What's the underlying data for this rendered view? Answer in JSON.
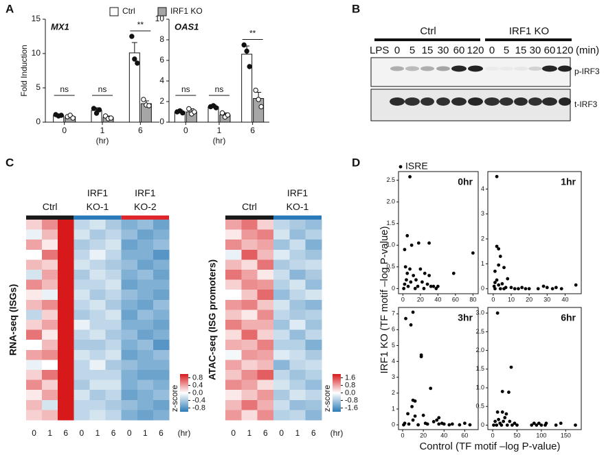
{
  "panel_labels": [
    "A",
    "B",
    "C",
    "D"
  ],
  "blot": {
    "groups": [
      "Ctrl",
      "IRF1 KO"
    ],
    "treatment": "LPS",
    "times": [
      0,
      5,
      15,
      30,
      60,
      120,
      0,
      5,
      15,
      30,
      60,
      120
    ],
    "unit": "(min)",
    "rows": [
      "p-IRF3",
      "t-IRF3"
    ]
  },
  "chart_data": [
    {
      "type": "bar",
      "title": "MX1",
      "ylabel": "Fold Induction",
      "xlabel": "(hr)",
      "categories": [
        "0",
        "1",
        "6"
      ],
      "series": [
        {
          "name": "Ctrl",
          "color": "#ffffff",
          "markers": "filled",
          "values": [
            1.0,
            1.7,
            10.1
          ],
          "errors": [
            0.2,
            0.4,
            1.5
          ],
          "points": [
            [
              1.1,
              0.9,
              1.0
            ],
            [
              2.0,
              1.3,
              1.8
            ],
            [
              12.5,
              9.2,
              8.6
            ]
          ]
        },
        {
          "name": "IRF1 KO",
          "color": "#a6a6a6",
          "markers": "open",
          "values": [
            0.8,
            0.7,
            2.7
          ],
          "errors": [
            0.2,
            0.2,
            0.4
          ],
          "points": [
            [
              0.8,
              1.0,
              0.6
            ],
            [
              0.9,
              0.5,
              0.6
            ],
            [
              3.3,
              2.5,
              2.4
            ]
          ]
        }
      ],
      "annotations": [
        "ns",
        "ns",
        "**"
      ],
      "ylim": [
        0,
        15
      ],
      "yticks": [
        0,
        5,
        10,
        15
      ]
    },
    {
      "type": "bar",
      "title": "OAS1",
      "xlabel": "(hr)",
      "categories": [
        "0",
        "1",
        "6"
      ],
      "series": [
        {
          "color": "#ffffff",
          "markers": "filled",
          "values": [
            1.0,
            1.5,
            6.6
          ],
          "errors": [
            0.2,
            0.2,
            0.8
          ],
          "points": [
            [
              1.0,
              1.1,
              0.9
            ],
            [
              1.5,
              1.6,
              1.4
            ],
            [
              7.5,
              6.9,
              5.4
            ]
          ]
        },
        {
          "color": "#a6a6a6",
          "markers": "open",
          "values": [
            1.0,
            0.7,
            2.3
          ],
          "errors": [
            0.3,
            0.2,
            0.6
          ],
          "points": [
            [
              1.3,
              0.8,
              1.0
            ],
            [
              0.9,
              0.5,
              0.7
            ],
            [
              3.1,
              2.2,
              1.5
            ]
          ]
        }
      ],
      "annotations": [
        "ns",
        "ns",
        "**"
      ],
      "ylim": [
        0,
        10
      ],
      "yticks": [
        0,
        2,
        4,
        6,
        8,
        10
      ]
    },
    {
      "type": "heatmap",
      "ylabel": "RNA-seq (ISGs)",
      "xlabel": "(hr)",
      "groups": [
        {
          "name": "Ctrl",
          "color": "#1a1a1a"
        },
        {
          "name": "IRF1\nKO-1",
          "color": "#2b7bba"
        },
        {
          "name": "IRF1\nKO-2",
          "color": "#e0262a"
        }
      ],
      "categories": [
        "0",
        "1",
        "6",
        "0",
        "1",
        "6",
        "0",
        "1",
        "6"
      ],
      "rows": [
        [
          0.2,
          0.5,
          1.0,
          -0.3,
          -0.2,
          -0.4,
          -0.6,
          -0.5,
          -0.7
        ],
        [
          -0.1,
          0.3,
          1.0,
          -0.2,
          -0.4,
          -0.3,
          -0.5,
          -0.7,
          -0.6
        ],
        [
          0.4,
          0.1,
          1.0,
          -0.4,
          -0.3,
          -0.2,
          -0.7,
          -0.6,
          -0.5
        ],
        [
          0.0,
          0.6,
          1.0,
          -0.3,
          -0.1,
          -0.3,
          -0.6,
          -0.6,
          -0.8
        ],
        [
          0.3,
          0.2,
          1.0,
          -0.2,
          -0.3,
          -0.4,
          -0.5,
          -0.7,
          -0.6
        ],
        [
          -0.2,
          0.4,
          1.0,
          -0.4,
          -0.2,
          -0.3,
          -0.6,
          -0.5,
          -0.7
        ],
        [
          0.5,
          0.3,
          1.0,
          -0.3,
          -0.3,
          -0.2,
          -0.7,
          -0.6,
          -0.6
        ],
        [
          0.1,
          -0.1,
          1.0,
          -0.2,
          -0.4,
          -0.3,
          -0.5,
          -0.6,
          -0.7
        ],
        [
          0.3,
          0.5,
          1.0,
          -0.3,
          -0.2,
          -0.4,
          -0.6,
          -0.7,
          -0.5
        ],
        [
          -0.3,
          0.2,
          1.0,
          -0.4,
          -0.3,
          -0.2,
          -0.7,
          -0.5,
          -0.6
        ],
        [
          0.2,
          0.4,
          1.0,
          -0.1,
          -0.3,
          -0.3,
          -0.6,
          -0.6,
          -0.7
        ],
        [
          0.6,
          0.1,
          1.0,
          -0.3,
          -0.2,
          -0.4,
          -0.5,
          -0.7,
          -0.6
        ],
        [
          0.0,
          0.3,
          1.0,
          -0.4,
          -0.4,
          -0.3,
          -0.6,
          -0.5,
          -0.8
        ],
        [
          0.4,
          0.5,
          1.0,
          -0.2,
          -0.3,
          -0.2,
          -0.7,
          -0.6,
          -0.5
        ],
        [
          -0.1,
          0.0,
          1.0,
          -0.3,
          -0.1,
          -0.4,
          -0.5,
          -0.6,
          -0.6
        ],
        [
          0.2,
          0.6,
          1.0,
          -0.3,
          -0.3,
          -0.3,
          -0.6,
          -0.7,
          -0.7
        ],
        [
          0.5,
          0.2,
          1.0,
          -0.4,
          -0.2,
          -0.2,
          -0.6,
          -0.5,
          -0.6
        ],
        [
          0.1,
          0.4,
          1.0,
          -0.2,
          -0.4,
          -0.3,
          -0.7,
          -0.6,
          -0.5
        ],
        [
          0.3,
          -0.2,
          1.0,
          -0.3,
          -0.3,
          -0.4,
          -0.5,
          -0.6,
          -0.7
        ],
        [
          0.2,
          0.3,
          1.0,
          -0.3,
          -0.2,
          -0.3,
          -0.6,
          -0.7,
          -0.6
        ]
      ],
      "clim": [
        -1,
        1
      ],
      "cticks": [
        0.8,
        0.4,
        {
          "value": 0,
          "label": "0.0"
        },
        -0.4,
        -0.8
      ],
      "clabel": "z-score",
      "colors": [
        "#2c7bb6",
        "#ffffff",
        "#d7191c"
      ]
    },
    {
      "type": "heatmap",
      "ylabel": "ATAC-seq (ISG promoters)",
      "xlabel": "(hr)",
      "groups": [
        {
          "name": "Ctrl",
          "color": "#1a1a1a"
        },
        {
          "name": "IRF1\nKO-1",
          "color": "#2b7bba"
        }
      ],
      "categories": [
        "0",
        "1",
        "6",
        "0",
        "1",
        "6"
      ],
      "rows": [
        [
          0.8,
          1.2,
          0.4,
          -0.6,
          -0.8,
          -1.0
        ],
        [
          0.2,
          0.9,
          1.1,
          -0.4,
          -1.0,
          -0.7
        ],
        [
          1.0,
          0.6,
          0.8,
          -0.9,
          -0.5,
          -1.2
        ],
        [
          -0.2,
          1.4,
          0.6,
          -0.3,
          -0.7,
          -0.9
        ],
        [
          0.6,
          0.3,
          1.2,
          -0.8,
          -0.6,
          -0.5
        ],
        [
          1.2,
          0.8,
          0.2,
          -0.5,
          -1.1,
          -0.8
        ],
        [
          0.4,
          1.0,
          0.9,
          -0.7,
          -0.4,
          -1.0
        ],
        [
          0.0,
          0.5,
          1.3,
          -1.0,
          -0.6,
          -0.4
        ],
        [
          0.9,
          1.1,
          0.5,
          -0.4,
          -0.9,
          -1.1
        ],
        [
          0.5,
          0.2,
          1.0,
          -0.6,
          -0.8,
          -0.7
        ],
        [
          1.1,
          0.7,
          0.7,
          -0.9,
          -0.3,
          -0.9
        ],
        [
          0.3,
          1.3,
          0.4,
          -0.5,
          -1.0,
          -0.6
        ],
        [
          0.7,
          0.6,
          1.1,
          -0.7,
          -0.7,
          -1.2
        ],
        [
          -0.1,
          0.9,
          0.8,
          -0.3,
          -0.5,
          -0.8
        ],
        [
          0.8,
          0.4,
          0.6,
          -1.1,
          -0.6,
          -0.5
        ],
        [
          0.5,
          1.0,
          1.4,
          -0.6,
          -0.9,
          -0.7
        ],
        [
          1.0,
          0.8,
          0.3,
          -0.4,
          -0.7,
          -1.0
        ],
        [
          0.2,
          0.5,
          0.9,
          -0.8,
          -0.4,
          -0.6
        ],
        [
          0.6,
          1.2,
          0.7,
          -0.5,
          -1.0,
          -0.9
        ],
        [
          0.9,
          0.3,
          1.0,
          -0.7,
          -0.6,
          -1.1
        ]
      ],
      "clim": [
        -2,
        2
      ],
      "cticks": [
        1.6,
        0.8,
        {
          "value": 0,
          "label": "0.0"
        },
        -0.8,
        -1.6
      ],
      "clabel": "z-score",
      "colors": [
        "#2c7bb6",
        "#ffffff",
        "#d7191c"
      ]
    },
    {
      "type": "scatter",
      "title": "0hr",
      "legend": "ISRE",
      "xlabel": "Control (TF motif –log P-value)",
      "ylabel": "IRF1 KO (TF motif –log P-value)",
      "color": "#000000",
      "x": [
        8,
        5,
        2,
        10,
        18,
        30,
        80,
        3,
        5,
        8,
        12,
        15,
        20,
        22,
        25,
        28,
        30,
        32,
        35,
        38,
        1,
        2,
        6,
        9,
        14,
        17,
        24,
        40,
        58,
        4
      ],
      "values": [
        2.58,
        1.22,
        0.9,
        1.0,
        1.05,
        1.05,
        0.82,
        0.5,
        0.35,
        0.45,
        0.3,
        0.2,
        0.45,
        0.15,
        0.35,
        0.1,
        0.3,
        0.05,
        0.05,
        0.0,
        0.0,
        0.1,
        0.05,
        0.15,
        0.0,
        0.05,
        0.0,
        0.05,
        0.35,
        0.2
      ],
      "xlim": [
        -5,
        86
      ],
      "ylim": [
        -0.12,
        2.7
      ],
      "xticks": [
        0,
        20,
        40,
        60,
        80
      ],
      "yticks": [
        0,
        0.5,
        {
          "value": 1,
          "label": "1.0"
        },
        1.5,
        {
          "value": 2,
          "label": "2.0"
        },
        2.5
      ]
    },
    {
      "type": "scatter",
      "title": "1hr",
      "color": "#000000",
      "x": [
        2,
        2,
        3,
        4,
        3,
        6,
        1,
        8,
        2,
        1,
        5,
        3,
        0.5,
        7,
        10,
        12,
        14,
        16,
        18,
        25,
        28,
        30,
        33,
        35,
        38,
        46,
        1,
        4,
        6,
        20
      ],
      "values": [
        4.5,
        1.7,
        1.6,
        1.3,
        0.95,
        0.85,
        0.7,
        0.4,
        0.35,
        0.25,
        0.2,
        0.15,
        0.1,
        0.05,
        0.05,
        0.0,
        0.0,
        0.05,
        0.0,
        0.0,
        0.1,
        0.05,
        0.0,
        0.05,
        0.0,
        0.15,
        0.0,
        0.0,
        0.0,
        0.0
      ],
      "xlim": [
        -3,
        49
      ],
      "ylim": [
        -0.2,
        4.7
      ],
      "xticks": [
        0,
        10,
        20,
        30,
        40
      ],
      "yticks": [
        0,
        1,
        2,
        3,
        4
      ]
    },
    {
      "type": "scatter",
      "title": "3hr",
      "color": "#000000",
      "x": [
        3,
        10,
        8,
        18,
        18,
        27,
        10,
        12,
        9,
        5,
        12,
        20,
        10,
        2,
        6,
        15,
        22,
        24,
        30,
        33,
        35,
        40,
        45,
        48,
        55,
        60,
        65,
        35,
        38,
        1
      ],
      "values": [
        6.7,
        7.1,
        6.3,
        4.4,
        4.3,
        2.3,
        1.55,
        1.5,
        1.15,
        0.7,
        0.55,
        0.6,
        0.3,
        0.1,
        0.05,
        0.0,
        0.1,
        0.05,
        0.2,
        0.3,
        0.05,
        0.05,
        0.0,
        0.05,
        0.0,
        0.1,
        0.0,
        0.45,
        0.1,
        0.0
      ],
      "xlim": [
        -4,
        73
      ],
      "ylim": [
        -0.3,
        7.4
      ],
      "xticks": [
        0,
        20,
        40,
        60
      ],
      "yticks": [
        0,
        1,
        2,
        3,
        4,
        5,
        6,
        7
      ]
    },
    {
      "type": "scatter",
      "title": "6hr",
      "color": "#000000",
      "x": [
        10,
        38,
        20,
        33,
        10,
        20,
        28,
        25,
        5,
        15,
        18,
        35,
        40,
        45,
        80,
        90,
        95,
        100,
        108,
        130,
        140,
        170,
        30,
        8,
        12,
        22,
        2,
        50,
        85,
        110
      ],
      "values": [
        3.0,
        1.55,
        0.9,
        0.88,
        0.35,
        0.35,
        0.3,
        0.2,
        0.1,
        0.05,
        0.0,
        0.1,
        0.0,
        0.05,
        0.0,
        0.0,
        0.05,
        0.0,
        0.0,
        0.0,
        0.05,
        0.0,
        0.0,
        0.0,
        0.15,
        0.1,
        0.0,
        0.0,
        0.05,
        0.05
      ],
      "xlim": [
        -10,
        182
      ],
      "ylim": [
        -0.12,
        3.15
      ],
      "xticks": [
        0,
        50,
        100,
        150
      ],
      "yticks": [
        0,
        0.5,
        {
          "value": 1,
          "label": "1.0"
        },
        1.5,
        {
          "value": 2,
          "label": "2.0"
        },
        2.5,
        {
          "value": 3,
          "label": "3.0"
        }
      ]
    }
  ]
}
